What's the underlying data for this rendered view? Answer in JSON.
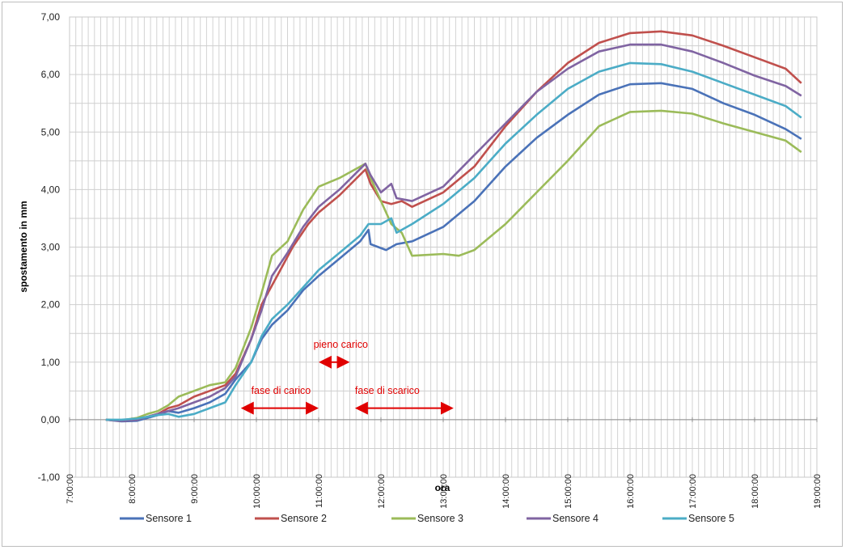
{
  "chart_data": {
    "type": "line",
    "xlabel": "ora",
    "ylabel": "spostamento in mm",
    "xlim": [
      "7:00:00",
      "19:00:00"
    ],
    "ylim": [
      -1,
      7
    ],
    "grid": true,
    "legend_position": "bottom",
    "x_ticks": [
      "7:00:00",
      "8:00:00",
      "9:00:00",
      "10:00:00",
      "11:00:00",
      "12:00:00",
      "13:00:00",
      "14:00:00",
      "15:00:00",
      "16:00:00",
      "17:00:00",
      "18:00:00",
      "19:00:00"
    ],
    "y_ticks": [
      "-1,00",
      "0,00",
      "1,00",
      "2,00",
      "3,00",
      "4,00",
      "5,00",
      "6,00",
      "7,00"
    ],
    "series": [
      {
        "name": "Sensore 1",
        "color": "#4a72b8",
        "points": [
          [
            "7:35:00",
            0.0
          ],
          [
            "7:50:00",
            -0.03
          ],
          [
            "8:05:00",
            -0.02
          ],
          [
            "8:15:00",
            0.03
          ],
          [
            "8:25:00",
            0.08
          ],
          [
            "8:35:00",
            0.15
          ],
          [
            "8:45:00",
            0.12
          ],
          [
            "9:00:00",
            0.2
          ],
          [
            "9:15:00",
            0.3
          ],
          [
            "9:30:00",
            0.45
          ],
          [
            "9:40:00",
            0.7
          ],
          [
            "9:55:00",
            1.0
          ],
          [
            "10:05:00",
            1.4
          ],
          [
            "10:15:00",
            1.65
          ],
          [
            "10:30:00",
            1.9
          ],
          [
            "10:45:00",
            2.25
          ],
          [
            "11:00:00",
            2.5
          ],
          [
            "11:20:00",
            2.8
          ],
          [
            "11:40:00",
            3.1
          ],
          [
            "11:48:00",
            3.3
          ],
          [
            "11:50:00",
            3.05
          ],
          [
            "12:05:00",
            2.95
          ],
          [
            "12:15:00",
            3.05
          ],
          [
            "12:30:00",
            3.1
          ],
          [
            "13:00:00",
            3.35
          ],
          [
            "13:30:00",
            3.8
          ],
          [
            "14:00:00",
            4.4
          ],
          [
            "14:30:00",
            4.9
          ],
          [
            "15:00:00",
            5.3
          ],
          [
            "15:30:00",
            5.65
          ],
          [
            "16:00:00",
            5.83
          ],
          [
            "16:30:00",
            5.85
          ],
          [
            "17:00:00",
            5.75
          ],
          [
            "17:30:00",
            5.5
          ],
          [
            "18:00:00",
            5.3
          ],
          [
            "18:30:00",
            5.05
          ],
          [
            "18:45:00",
            4.88
          ]
        ]
      },
      {
        "name": "Sensore 2",
        "color": "#c0504d",
        "points": [
          [
            "7:35:00",
            0.0
          ],
          [
            "7:50:00",
            -0.02
          ],
          [
            "8:05:00",
            0.0
          ],
          [
            "8:15:00",
            0.05
          ],
          [
            "8:25:00",
            0.1
          ],
          [
            "8:35:00",
            0.2
          ],
          [
            "8:45:00",
            0.25
          ],
          [
            "9:00:00",
            0.4
          ],
          [
            "9:15:00",
            0.5
          ],
          [
            "9:30:00",
            0.6
          ],
          [
            "9:40:00",
            0.8
          ],
          [
            "9:55:00",
            1.4
          ],
          [
            "10:05:00",
            2.0
          ],
          [
            "10:20:00",
            2.5
          ],
          [
            "10:35:00",
            3.0
          ],
          [
            "10:50:00",
            3.4
          ],
          [
            "11:00:00",
            3.6
          ],
          [
            "11:20:00",
            3.9
          ],
          [
            "11:45:00",
            4.35
          ],
          [
            "11:50:00",
            4.1
          ],
          [
            "12:00:00",
            3.8
          ],
          [
            "12:10:00",
            3.75
          ],
          [
            "12:20:00",
            3.8
          ],
          [
            "12:30:00",
            3.7
          ],
          [
            "13:00:00",
            3.95
          ],
          [
            "13:30:00",
            4.4
          ],
          [
            "14:00:00",
            5.1
          ],
          [
            "14:30:00",
            5.7
          ],
          [
            "15:00:00",
            6.2
          ],
          [
            "15:30:00",
            6.55
          ],
          [
            "16:00:00",
            6.72
          ],
          [
            "16:30:00",
            6.75
          ],
          [
            "17:00:00",
            6.68
          ],
          [
            "17:30:00",
            6.5
          ],
          [
            "18:00:00",
            6.3
          ],
          [
            "18:30:00",
            6.1
          ],
          [
            "18:45:00",
            5.85
          ]
        ]
      },
      {
        "name": "Sensore 3",
        "color": "#9bbb59",
        "points": [
          [
            "7:35:00",
            0.0
          ],
          [
            "7:50:00",
            -0.01
          ],
          [
            "8:05:00",
            0.03
          ],
          [
            "8:15:00",
            0.1
          ],
          [
            "8:25:00",
            0.15
          ],
          [
            "8:35:00",
            0.25
          ],
          [
            "8:45:00",
            0.4
          ],
          [
            "9:00:00",
            0.5
          ],
          [
            "9:15:00",
            0.6
          ],
          [
            "9:30:00",
            0.65
          ],
          [
            "9:40:00",
            0.9
          ],
          [
            "9:55:00",
            1.6
          ],
          [
            "10:05:00",
            2.2
          ],
          [
            "10:15:00",
            2.85
          ],
          [
            "10:30:00",
            3.1
          ],
          [
            "10:45:00",
            3.65
          ],
          [
            "11:00:00",
            4.05
          ],
          [
            "11:20:00",
            4.2
          ],
          [
            "11:45:00",
            4.45
          ],
          [
            "11:50:00",
            4.2
          ],
          [
            "12:00:00",
            3.8
          ],
          [
            "12:10:00",
            3.4
          ],
          [
            "12:20:00",
            3.25
          ],
          [
            "12:30:00",
            2.85
          ],
          [
            "13:00:00",
            2.88
          ],
          [
            "13:15:00",
            2.85
          ],
          [
            "13:30:00",
            2.95
          ],
          [
            "14:00:00",
            3.4
          ],
          [
            "14:30:00",
            3.95
          ],
          [
            "15:00:00",
            4.5
          ],
          [
            "15:30:00",
            5.1
          ],
          [
            "16:00:00",
            5.35
          ],
          [
            "16:30:00",
            5.37
          ],
          [
            "17:00:00",
            5.32
          ],
          [
            "17:30:00",
            5.15
          ],
          [
            "18:00:00",
            5.0
          ],
          [
            "18:30:00",
            4.85
          ],
          [
            "18:45:00",
            4.65
          ]
        ]
      },
      {
        "name": "Sensore 4",
        "color": "#8064a2",
        "points": [
          [
            "7:35:00",
            0.0
          ],
          [
            "7:50:00",
            -0.02
          ],
          [
            "8:05:00",
            0.0
          ],
          [
            "8:15:00",
            0.05
          ],
          [
            "8:25:00",
            0.1
          ],
          [
            "8:35:00",
            0.15
          ],
          [
            "8:45:00",
            0.2
          ],
          [
            "9:00:00",
            0.3
          ],
          [
            "9:15:00",
            0.4
          ],
          [
            "9:30:00",
            0.55
          ],
          [
            "9:40:00",
            0.75
          ],
          [
            "9:55:00",
            1.4
          ],
          [
            "10:05:00",
            1.9
          ],
          [
            "10:15:00",
            2.5
          ],
          [
            "10:30:00",
            2.9
          ],
          [
            "10:45:00",
            3.35
          ],
          [
            "11:00:00",
            3.7
          ],
          [
            "11:20:00",
            4.0
          ],
          [
            "11:45:00",
            4.45
          ],
          [
            "11:50:00",
            4.25
          ],
          [
            "12:00:00",
            3.95
          ],
          [
            "12:10:00",
            4.1
          ],
          [
            "12:15:00",
            3.85
          ],
          [
            "12:30:00",
            3.8
          ],
          [
            "13:00:00",
            4.05
          ],
          [
            "13:30:00",
            4.6
          ],
          [
            "14:00:00",
            5.15
          ],
          [
            "14:30:00",
            5.7
          ],
          [
            "15:00:00",
            6.1
          ],
          [
            "15:30:00",
            6.4
          ],
          [
            "16:00:00",
            6.52
          ],
          [
            "16:30:00",
            6.52
          ],
          [
            "17:00:00",
            6.4
          ],
          [
            "17:30:00",
            6.2
          ],
          [
            "18:00:00",
            5.98
          ],
          [
            "18:30:00",
            5.8
          ],
          [
            "18:45:00",
            5.63
          ]
        ]
      },
      {
        "name": "Sensore 5",
        "color": "#4bacc6",
        "points": [
          [
            "7:35:00",
            0.0
          ],
          [
            "7:50:00",
            0.0
          ],
          [
            "8:05:00",
            0.02
          ],
          [
            "8:15:00",
            0.05
          ],
          [
            "8:25:00",
            0.08
          ],
          [
            "8:35:00",
            0.1
          ],
          [
            "8:45:00",
            0.05
          ],
          [
            "9:00:00",
            0.1
          ],
          [
            "9:15:00",
            0.2
          ],
          [
            "9:30:00",
            0.3
          ],
          [
            "9:40:00",
            0.6
          ],
          [
            "9:55:00",
            1.0
          ],
          [
            "10:05:00",
            1.45
          ],
          [
            "10:15:00",
            1.75
          ],
          [
            "10:30:00",
            2.0
          ],
          [
            "10:45:00",
            2.3
          ],
          [
            "11:00:00",
            2.6
          ],
          [
            "11:20:00",
            2.9
          ],
          [
            "11:40:00",
            3.2
          ],
          [
            "11:48:00",
            3.4
          ],
          [
            "12:00:00",
            3.4
          ],
          [
            "12:10:00",
            3.5
          ],
          [
            "12:15:00",
            3.25
          ],
          [
            "12:30:00",
            3.4
          ],
          [
            "13:00:00",
            3.75
          ],
          [
            "13:30:00",
            4.2
          ],
          [
            "14:00:00",
            4.8
          ],
          [
            "14:30:00",
            5.3
          ],
          [
            "15:00:00",
            5.75
          ],
          [
            "15:30:00",
            6.05
          ],
          [
            "16:00:00",
            6.2
          ],
          [
            "16:30:00",
            6.18
          ],
          [
            "17:00:00",
            6.05
          ],
          [
            "17:30:00",
            5.85
          ],
          [
            "18:00:00",
            5.65
          ],
          [
            "18:30:00",
            5.45
          ],
          [
            "18:45:00",
            5.25
          ]
        ]
      }
    ],
    "annotations": [
      {
        "text": "fase di carico",
        "x": "9:55:00",
        "y": 0.45,
        "arrow": [
          "9:45:00",
          "11:00:00"
        ],
        "arrow_y": 0.2
      },
      {
        "text": "pieno carico",
        "x": "10:55:00",
        "y": 1.25,
        "arrow": [
          "11:00:00",
          "11:30:00"
        ],
        "arrow_y": 1.0
      },
      {
        "text": "fase di scarico",
        "x": "11:35:00",
        "y": 0.45,
        "arrow": [
          "11:35:00",
          "13:10:00"
        ],
        "arrow_y": 0.2
      }
    ],
    "annotation_color": "#e00000"
  }
}
